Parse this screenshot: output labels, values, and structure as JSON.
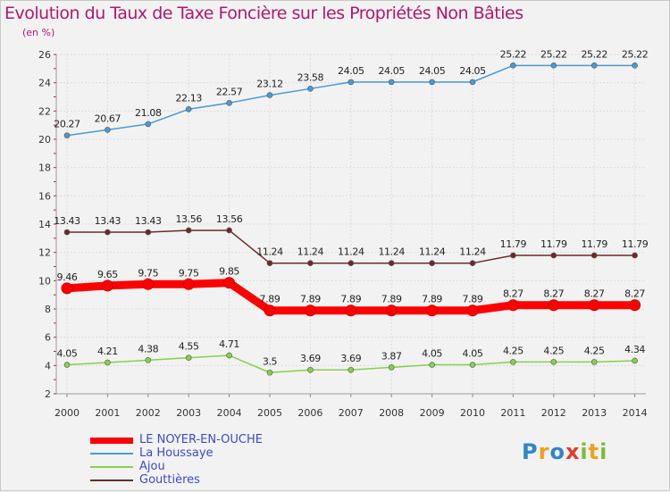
{
  "header": {
    "title": "Evolution du Taux de Taxe Foncière sur les Propriétés Non Bâties",
    "units": "(en %)"
  },
  "logo_text": "Proxiti",
  "chart_data": {
    "type": "line",
    "title": "Evolution du Taux de Taxe Foncière sur les Propriétés Non Bâties",
    "ylabel": "(en %)",
    "xlabel": "",
    "x": [
      "2000",
      "2001",
      "2002",
      "2003",
      "2004",
      "2005",
      "2006",
      "2007",
      "2008",
      "2009",
      "2010",
      "2011",
      "2012",
      "2013",
      "2014"
    ],
    "ylim": [
      2,
      26
    ],
    "yticks": [
      "2",
      "4",
      "6",
      "8",
      "10",
      "12",
      "14",
      "16",
      "18",
      "20",
      "22",
      "24",
      "26"
    ],
    "grid": true,
    "legend_position": "bottom-left",
    "series": [
      {
        "name": "LE NOYER-EN-OUCHE",
        "color": "#ff0000",
        "values": [
          9.46,
          9.65,
          9.75,
          9.75,
          9.85,
          7.89,
          7.89,
          7.89,
          7.89,
          7.89,
          7.89,
          8.27,
          8.27,
          8.27,
          8.27
        ],
        "labels": [
          "9.46",
          "9.65",
          "9.75",
          "9.75",
          "9.85",
          "7.89",
          "7.89",
          "7.89",
          "7.89",
          "7.89",
          "7.89",
          "8.27",
          "8.27",
          "8.27",
          "8.27"
        ]
      },
      {
        "name": "La Houssaye",
        "color": "#4a9ad4",
        "values": [
          20.27,
          20.67,
          21.08,
          22.13,
          22.57,
          23.12,
          23.58,
          24.05,
          24.05,
          24.05,
          24.05,
          25.22,
          25.22,
          25.22,
          25.22
        ],
        "labels": [
          "20.27",
          "20.67",
          "21.08",
          "22.13",
          "22.57",
          "23.12",
          "23.58",
          "24.05",
          "24.05",
          "24.05",
          "24.05",
          "25.22",
          "25.22",
          "25.22",
          "25.22"
        ]
      },
      {
        "name": "Ajou",
        "color": "#86d14a",
        "values": [
          4.05,
          4.21,
          4.38,
          4.55,
          4.71,
          3.5,
          3.69,
          3.69,
          3.87,
          4.05,
          4.05,
          4.25,
          4.25,
          4.25,
          4.34
        ],
        "labels": [
          "4.05",
          "4.21",
          "4.38",
          "4.55",
          "4.71",
          "3.5",
          "3.69",
          "3.69",
          "3.87",
          "4.05",
          "4.05",
          "4.25",
          "4.25",
          "4.25",
          "4.34"
        ]
      },
      {
        "name": "Gouttières",
        "color": "#6b2a2a",
        "values": [
          13.43,
          13.43,
          13.43,
          13.56,
          13.56,
          11.24,
          11.24,
          11.24,
          11.24,
          11.24,
          11.24,
          11.79,
          11.79,
          11.79,
          11.79
        ],
        "labels": [
          "13.43",
          "13.43",
          "13.43",
          "13.56",
          "13.56",
          "11.24",
          "11.24",
          "11.24",
          "11.24",
          "11.24",
          "11.24",
          "11.79",
          "11.79",
          "11.79",
          "11.79"
        ]
      }
    ]
  }
}
